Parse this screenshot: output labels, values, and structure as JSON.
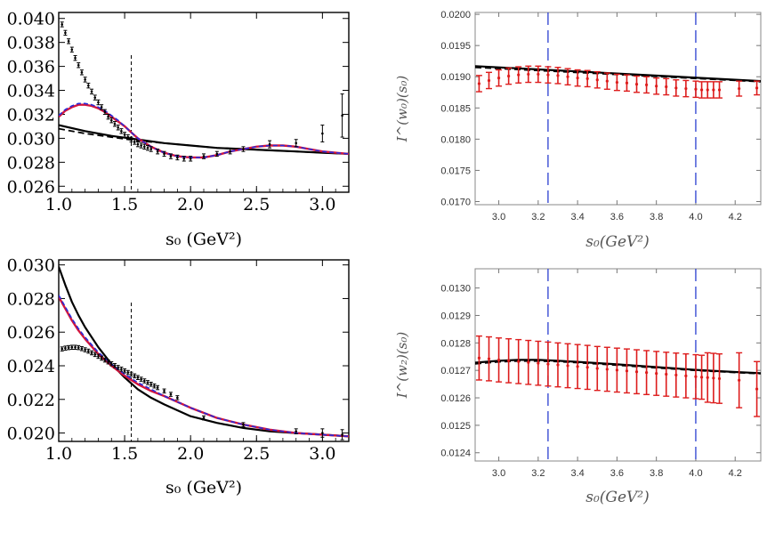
{
  "chart_data": [
    {
      "type": "scatter",
      "panel": "top-left",
      "xlabel": "s₀ (GeV²)",
      "ylabel": "",
      "xlim": [
        1.0,
        3.2
      ],
      "ylim": [
        0.0255,
        0.0405
      ],
      "xticks": [
        "1.0",
        "1.5",
        "2.0",
        "2.5",
        "3.0"
      ],
      "xtick_values": [
        1.0,
        1.5,
        2.0,
        2.5,
        3.0
      ],
      "yticks": [
        "0.026",
        "0.028",
        "0.030",
        "0.032",
        "0.034",
        "0.036",
        "0.038",
        "0.040"
      ],
      "ytick_values": [
        0.026,
        0.028,
        0.03,
        0.032,
        0.034,
        0.036,
        0.038,
        0.04
      ],
      "vline": 1.55,
      "data_points": {
        "x": [
          1.025,
          1.05,
          1.075,
          1.1,
          1.125,
          1.15,
          1.175,
          1.2,
          1.225,
          1.25,
          1.275,
          1.3,
          1.325,
          1.35,
          1.375,
          1.4,
          1.425,
          1.45,
          1.475,
          1.5,
          1.525,
          1.55,
          1.575,
          1.6,
          1.625,
          1.65,
          1.675,
          1.7,
          1.75,
          1.8,
          1.85,
          1.9,
          1.95,
          2.0,
          2.1,
          2.2,
          2.3,
          2.4,
          2.6,
          2.8,
          3.0,
          3.15
        ],
        "y": [
          0.0395,
          0.0388,
          0.0381,
          0.0374,
          0.0367,
          0.0361,
          0.0355,
          0.0349,
          0.0344,
          0.0339,
          0.0334,
          0.033,
          0.0326,
          0.0322,
          0.0318,
          0.0315,
          0.0312,
          0.0309,
          0.0306,
          0.0303,
          0.0301,
          0.0299,
          0.0297,
          0.0295,
          0.0294,
          0.0293,
          0.0292,
          0.0291,
          0.0289,
          0.0287,
          0.0285,
          0.0284,
          0.0283,
          0.0283,
          0.0285,
          0.0287,
          0.0289,
          0.0291,
          0.0295,
          0.0296,
          0.0304,
          0.0319
        ],
        "err": [
          0.0002,
          0.0002,
          0.0002,
          0.0002,
          0.0002,
          0.0002,
          0.0002,
          0.0002,
          0.0002,
          0.0002,
          0.0002,
          0.0002,
          0.0002,
          0.0002,
          0.0002,
          0.0002,
          0.0002,
          0.0002,
          0.0002,
          0.0002,
          0.0002,
          0.0002,
          0.0002,
          0.0002,
          0.0002,
          0.0002,
          0.0002,
          0.0002,
          0.0002,
          0.0002,
          0.0002,
          0.0002,
          0.0002,
          0.0002,
          0.0002,
          0.0002,
          0.0002,
          0.0002,
          0.0003,
          0.0003,
          0.0007,
          0.0018
        ]
      },
      "series": [
        {
          "style": "black-solid",
          "x": [
            1.0,
            1.2,
            1.4,
            1.6,
            1.8,
            2.0,
            2.2,
            2.4,
            2.6,
            2.8,
            3.0,
            3.2
          ],
          "y": [
            0.0311,
            0.0306,
            0.0302,
            0.0299,
            0.0296,
            0.0294,
            0.0292,
            0.0291,
            0.029,
            0.0289,
            0.0288,
            0.0287
          ]
        },
        {
          "style": "black-dashed",
          "x": [
            1.0,
            1.2,
            1.4,
            1.6,
            1.8,
            2.0,
            2.2,
            2.4,
            2.6,
            2.8,
            3.0,
            3.2
          ],
          "y": [
            0.0308,
            0.0304,
            0.0301,
            0.0298,
            0.0296,
            0.0294,
            0.0292,
            0.0291,
            0.029,
            0.0289,
            0.0288,
            0.0287
          ]
        },
        {
          "style": "red-solid",
          "x": [
            1.0,
            1.05,
            1.1,
            1.15,
            1.2,
            1.25,
            1.3,
            1.35,
            1.4,
            1.45,
            1.5,
            1.55,
            1.6,
            1.7,
            1.8,
            1.9,
            2.0,
            2.1,
            2.2,
            2.3,
            2.4,
            2.5,
            2.6,
            2.7,
            2.8,
            2.9,
            3.0,
            3.1,
            3.2
          ],
          "y": [
            0.0318,
            0.0323,
            0.0326,
            0.0328,
            0.0328,
            0.0327,
            0.0325,
            0.0322,
            0.0318,
            0.0314,
            0.031,
            0.0305,
            0.03,
            0.0293,
            0.0288,
            0.0285,
            0.0284,
            0.0284,
            0.0286,
            0.0289,
            0.0291,
            0.0293,
            0.0294,
            0.0294,
            0.0293,
            0.0291,
            0.0289,
            0.0288,
            0.0287
          ]
        },
        {
          "style": "blue-dashed",
          "x": [
            1.0,
            1.05,
            1.1,
            1.15,
            1.2,
            1.25,
            1.3,
            1.35,
            1.4,
            1.45,
            1.5,
            1.55,
            1.6,
            1.7,
            1.8,
            1.9,
            2.0,
            2.1,
            2.2,
            2.3,
            2.4,
            2.5,
            2.6,
            2.7,
            2.8,
            2.9,
            3.0,
            3.1,
            3.2
          ],
          "y": [
            0.0319,
            0.0324,
            0.0327,
            0.0329,
            0.0329,
            0.0328,
            0.0326,
            0.0323,
            0.0319,
            0.0315,
            0.031,
            0.0305,
            0.03,
            0.0293,
            0.0288,
            0.0285,
            0.0284,
            0.0284,
            0.0286,
            0.0289,
            0.0291,
            0.0293,
            0.0294,
            0.0294,
            0.0293,
            0.0291,
            0.0289,
            0.0288,
            0.0287
          ]
        }
      ]
    },
    {
      "type": "scatter",
      "panel": "top-right",
      "xlabel": "s₀(GeV²)",
      "ylabel": "I^(w₀)(s₀)",
      "xlim": [
        2.88,
        4.33
      ],
      "ylim": [
        0.01695,
        0.02003
      ],
      "xticks": [
        "3.0",
        "3.2",
        "3.4",
        "3.6",
        "3.8",
        "4.0",
        "4.2"
      ],
      "xtick_values": [
        3.0,
        3.2,
        3.4,
        3.6,
        3.8,
        4.0,
        4.2
      ],
      "yticks": [
        "0.0170",
        "0.0175",
        "0.0180",
        "0.0185",
        "0.0190",
        "0.0195",
        "0.0200"
      ],
      "ytick_values": [
        0.017,
        0.0175,
        0.018,
        0.0185,
        0.019,
        0.0195,
        0.02
      ],
      "vlines": [
        3.25,
        4.0
      ],
      "data_points": {
        "x": [
          2.9,
          2.95,
          3.0,
          3.05,
          3.1,
          3.15,
          3.2,
          3.25,
          3.3,
          3.35,
          3.4,
          3.45,
          3.5,
          3.55,
          3.6,
          3.65,
          3.7,
          3.75,
          3.8,
          3.85,
          3.9,
          3.95,
          4.0,
          4.03,
          4.06,
          4.09,
          4.12,
          4.22,
          4.31
        ],
        "y": [
          0.01889,
          0.01894,
          0.01898,
          0.01901,
          0.01903,
          0.01904,
          0.01904,
          0.01903,
          0.01902,
          0.019,
          0.01898,
          0.01897,
          0.01895,
          0.01893,
          0.01891,
          0.0189,
          0.01888,
          0.01887,
          0.01885,
          0.01884,
          0.01882,
          0.01881,
          0.0188,
          0.01879,
          0.01879,
          0.01879,
          0.01879,
          0.01881,
          0.01882
        ],
        "err": [
          0.00013,
          0.00013,
          0.00013,
          0.00013,
          0.00013,
          0.00013,
          0.00013,
          0.00013,
          0.00013,
          0.00013,
          0.00013,
          0.00013,
          0.00013,
          0.00013,
          0.00013,
          0.00013,
          0.00013,
          0.00013,
          0.00013,
          0.00013,
          0.00013,
          0.00013,
          0.00013,
          0.00013,
          0.00013,
          0.00013,
          0.00013,
          0.00012,
          0.00011
        ]
      },
      "series": [
        {
          "style": "black-solid",
          "x": [
            2.88,
            4.33
          ],
          "y": [
            0.01917,
            0.01893
          ]
        },
        {
          "style": "black-dashed",
          "x": [
            2.88,
            4.33
          ],
          "y": [
            0.01915,
            0.01892
          ]
        }
      ]
    },
    {
      "type": "scatter",
      "panel": "bottom-left",
      "xlabel": "s₀ (GeV²)",
      "ylabel": "",
      "xlim": [
        1.0,
        3.2
      ],
      "ylim": [
        0.0195,
        0.0303
      ],
      "xticks": [
        "1.0",
        "1.5",
        "2.0",
        "2.5",
        "3.0"
      ],
      "xtick_values": [
        1.0,
        1.5,
        2.0,
        2.5,
        3.0
      ],
      "yticks": [
        "0.020",
        "0.022",
        "0.024",
        "0.026",
        "0.028",
        "0.030"
      ],
      "ytick_values": [
        0.02,
        0.022,
        0.024,
        0.026,
        0.028,
        0.03
      ],
      "vline": 1.55,
      "data_points": {
        "x": [
          1.025,
          1.05,
          1.075,
          1.1,
          1.125,
          1.15,
          1.175,
          1.2,
          1.225,
          1.25,
          1.275,
          1.3,
          1.325,
          1.35,
          1.375,
          1.4,
          1.425,
          1.45,
          1.475,
          1.5,
          1.525,
          1.55,
          1.575,
          1.6,
          1.625,
          1.65,
          1.675,
          1.7,
          1.725,
          1.75,
          1.8,
          1.85,
          1.9,
          2.1,
          2.4,
          2.8,
          3.0,
          3.15
        ],
        "y": [
          0.025,
          0.02505,
          0.02508,
          0.0251,
          0.0251,
          0.02508,
          0.02502,
          0.02495,
          0.02487,
          0.02477,
          0.02467,
          0.02456,
          0.02445,
          0.02434,
          0.02423,
          0.02412,
          0.02401,
          0.0239,
          0.0238,
          0.0237,
          0.0236,
          0.0235,
          0.0234,
          0.0233,
          0.0232,
          0.0231,
          0.023,
          0.0229,
          0.0228,
          0.0227,
          0.0225,
          0.0223,
          0.0221,
          0.0209,
          0.0205,
          0.0201,
          0.02,
          0.0199
        ],
        "err": [
          0.00012,
          0.00012,
          0.00012,
          0.00012,
          0.00012,
          0.00012,
          0.00012,
          0.00012,
          0.00012,
          0.00012,
          0.00012,
          0.00012,
          0.00012,
          0.00012,
          0.00012,
          0.00012,
          0.00012,
          0.00012,
          0.00012,
          0.00012,
          0.00012,
          0.00012,
          0.00012,
          0.00012,
          0.00012,
          0.00012,
          0.00012,
          0.00012,
          0.00012,
          0.00012,
          0.00012,
          0.00012,
          0.00012,
          0.00012,
          0.00012,
          0.00015,
          0.00025,
          0.0003
        ]
      },
      "series": [
        {
          "style": "black-solid",
          "x": [
            1.0,
            1.05,
            1.1,
            1.15,
            1.2,
            1.3,
            1.4,
            1.5,
            1.6,
            1.7,
            1.8,
            2.0,
            2.2,
            2.4,
            2.6,
            2.8,
            3.0,
            3.2
          ],
          "y": [
            0.0299,
            0.0288,
            0.0278,
            0.027,
            0.0263,
            0.0251,
            0.0241,
            0.0233,
            0.0226,
            0.0221,
            0.0217,
            0.021,
            0.0206,
            0.0203,
            0.0201,
            0.02,
            0.0199,
            0.0198
          ]
        },
        {
          "style": "red-solid",
          "x": [
            1.0,
            1.05,
            1.1,
            1.15,
            1.2,
            1.3,
            1.4,
            1.5,
            1.6,
            1.7,
            1.8,
            2.0,
            2.2,
            2.4,
            2.6,
            2.8,
            3.0,
            3.2
          ],
          "y": [
            0.0281,
            0.0274,
            0.0267,
            0.0261,
            0.0256,
            0.0247,
            0.024,
            0.0234,
            0.0229,
            0.0225,
            0.0222,
            0.0215,
            0.0209,
            0.0205,
            0.0202,
            0.02,
            0.0199,
            0.0198
          ]
        },
        {
          "style": "blue-dashed",
          "x": [
            1.0,
            1.05,
            1.1,
            1.15,
            1.2,
            1.3,
            1.4,
            1.5,
            1.6,
            1.7,
            1.8,
            2.0,
            2.2,
            2.4,
            2.6,
            2.8,
            3.0,
            3.2
          ],
          "y": [
            0.0282,
            0.0275,
            0.0268,
            0.0262,
            0.0257,
            0.0248,
            0.0241,
            0.0235,
            0.023,
            0.0226,
            0.0222,
            0.0215,
            0.0209,
            0.0205,
            0.0202,
            0.02,
            0.0199,
            0.0198
          ]
        }
      ]
    },
    {
      "type": "scatter",
      "panel": "bottom-right",
      "xlabel": "s₀(GeV²)",
      "ylabel": "I^(w₂)(s₀)",
      "xlim": [
        2.88,
        4.33
      ],
      "ylim": [
        0.01237,
        0.01307
      ],
      "xticks": [
        "3.0",
        "3.2",
        "3.4",
        "3.6",
        "3.8",
        "4.0",
        "4.2"
      ],
      "xtick_values": [
        3.0,
        3.2,
        3.4,
        3.6,
        3.8,
        4.0,
        4.2
      ],
      "yticks": [
        "0.0124",
        "0.0125",
        "0.0126",
        "0.0127",
        "0.0128",
        "0.0129",
        "0.0130"
      ],
      "ytick_values": [
        0.0124,
        0.0125,
        0.0126,
        0.0127,
        0.0128,
        0.0129,
        0.013
      ],
      "vlines": [
        3.25,
        4.0
      ],
      "data_points": {
        "x": [
          2.9,
          2.95,
          3.0,
          3.05,
          3.1,
          3.15,
          3.2,
          3.25,
          3.3,
          3.35,
          3.4,
          3.45,
          3.5,
          3.55,
          3.6,
          3.65,
          3.7,
          3.75,
          3.8,
          3.85,
          3.9,
          3.95,
          4.0,
          4.03,
          4.06,
          4.09,
          4.12,
          4.22,
          4.31
        ],
        "y": [
          0.012745,
          0.012742,
          0.012738,
          0.012735,
          0.012732,
          0.012729,
          0.012726,
          0.012723,
          0.01272,
          0.012717,
          0.012714,
          0.012711,
          0.012707,
          0.012704,
          0.012701,
          0.012698,
          0.012695,
          0.012692,
          0.012689,
          0.012686,
          0.012683,
          0.01268,
          0.012677,
          0.012675,
          0.012674,
          0.012672,
          0.01267,
          0.012664,
          0.012632
        ],
        "err": [
          8e-05,
          8e-05,
          8e-05,
          8e-05,
          8e-05,
          8e-05,
          8e-05,
          8e-05,
          8e-05,
          8e-05,
          8e-05,
          8e-05,
          8e-05,
          8e-05,
          8e-05,
          8e-05,
          8e-05,
          8e-05,
          8e-05,
          8e-05,
          8e-05,
          8e-05,
          8e-05,
          8e-05,
          9e-05,
          9e-05,
          9e-05,
          0.0001,
          0.0001
        ]
      },
      "series": [
        {
          "style": "black-solid",
          "x": [
            2.88,
            3.0,
            3.1,
            3.2,
            3.3,
            3.4,
            3.6,
            3.8,
            4.0,
            4.2,
            4.33
          ],
          "y": [
            0.012728,
            0.012735,
            0.012738,
            0.012738,
            0.012735,
            0.012731,
            0.012722,
            0.012712,
            0.012702,
            0.012694,
            0.01269
          ]
        },
        {
          "style": "black-dashed",
          "x": [
            2.88,
            3.0,
            3.1,
            3.2,
            3.3,
            3.4,
            3.6,
            3.8,
            4.0,
            4.2,
            4.33
          ],
          "y": [
            0.012724,
            0.012731,
            0.012734,
            0.012734,
            0.012732,
            0.012728,
            0.012719,
            0.012709,
            0.0127,
            0.012692,
            0.012688
          ]
        }
      ]
    }
  ]
}
